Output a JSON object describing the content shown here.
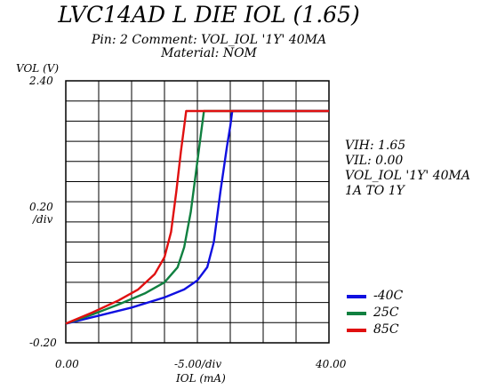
{
  "chart_data": {
    "type": "line",
    "title": "LVC14AD L DIE IOL (1.65)",
    "subtitle_lines": [
      "Pin: 2 Comment: VOL_IOL '1Y' 40MA",
      "Material: NOM"
    ],
    "ylabel": "VOL (V)",
    "y_top_label": "2.40",
    "y_mid_label_1": "0.20",
    "y_mid_label_2": "/div",
    "y_bottom_label": "-0.20",
    "xlabel": "IOL (mA)",
    "x_left_label": "0.00",
    "x_mid_label": "-5.00/div",
    "x_right_label": "40.00",
    "xlim": [
      0,
      40
    ],
    "ylim": [
      -0.2,
      2.4
    ],
    "grid": true,
    "info_lines": [
      "VIH: 1.65",
      "VIL: 0.00",
      "VOL_IOL '1Y' 40MA",
      "1A TO 1Y"
    ],
    "series": [
      {
        "name": "-40C",
        "color": "#1010e0",
        "points": [
          [
            0,
            -0.01
          ],
          [
            5,
            0.07
          ],
          [
            10,
            0.15
          ],
          [
            15,
            0.25
          ],
          [
            18,
            0.33
          ],
          [
            20,
            0.42
          ],
          [
            21.5,
            0.55
          ],
          [
            22.5,
            0.8
          ],
          [
            23.5,
            1.3
          ],
          [
            24.5,
            1.75
          ],
          [
            25,
            1.95
          ],
          [
            25.3,
            2.1
          ],
          [
            26,
            2.1
          ],
          [
            40,
            2.1
          ]
        ]
      },
      {
        "name": "25C",
        "color": "#108040",
        "points": [
          [
            0,
            -0.01
          ],
          [
            4,
            0.08
          ],
          [
            8,
            0.18
          ],
          [
            12,
            0.29
          ],
          [
            15,
            0.4
          ],
          [
            17,
            0.55
          ],
          [
            18,
            0.75
          ],
          [
            19,
            1.1
          ],
          [
            20,
            1.6
          ],
          [
            20.6,
            1.9
          ],
          [
            21,
            2.1
          ],
          [
            22,
            2.1
          ],
          [
            40,
            2.1
          ]
        ]
      },
      {
        "name": "85C",
        "color": "#e01010",
        "points": [
          [
            0,
            -0.01
          ],
          [
            4,
            0.1
          ],
          [
            8,
            0.22
          ],
          [
            11,
            0.33
          ],
          [
            13.5,
            0.48
          ],
          [
            15,
            0.65
          ],
          [
            16,
            0.9
          ],
          [
            16.8,
            1.3
          ],
          [
            17.5,
            1.7
          ],
          [
            18,
            1.95
          ],
          [
            18.3,
            2.1
          ],
          [
            19,
            2.1
          ],
          [
            40,
            2.1
          ]
        ]
      }
    ]
  }
}
